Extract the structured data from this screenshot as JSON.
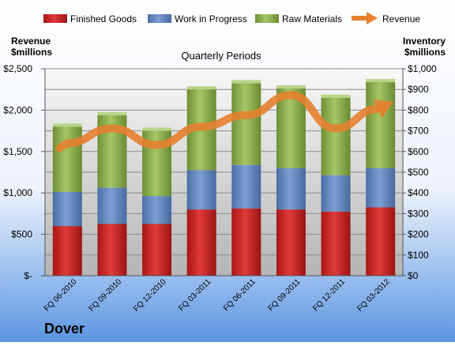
{
  "chart_data": {
    "type": "bar",
    "title": "Quarterly Periods",
    "company": "Dover",
    "left_axis_label": [
      "Revenue",
      "$millions"
    ],
    "right_axis_label": [
      "Inventory",
      "$millions"
    ],
    "categories": [
      "FQ 06-2010",
      "FQ 09-2010",
      "FQ 12-2010",
      "FQ 03-2011",
      "FQ 06-2011",
      "FQ 09-2011",
      "FQ 12-2011",
      "FQ 03-2012"
    ],
    "stacked": true,
    "series": [
      {
        "name": "Finished Goods",
        "axis": "right",
        "color": "#d32a2a",
        "values": [
          240,
          250,
          250,
          320,
          325,
          320,
          310,
          330
        ]
      },
      {
        "name": "Work in Progress",
        "axis": "right",
        "color": "#6a8cc4",
        "values": [
          165,
          175,
          135,
          190,
          210,
          200,
          175,
          190
        ]
      },
      {
        "name": "Raw Materials",
        "axis": "right",
        "color": "#94b454",
        "values": [
          315,
          350,
          315,
          390,
          395,
          385,
          375,
          415
        ]
      },
      {
        "name": "Revenue",
        "axis": "left",
        "type": "line",
        "color": "#e6812f",
        "values": [
          1600,
          1780,
          1580,
          1800,
          1940,
          2180,
          1780,
          2030
        ]
      }
    ],
    "left_ticks": [
      "$-",
      "$500",
      "$1,000",
      "$1,500",
      "$2,000",
      "$2,500"
    ],
    "right_ticks": [
      "$0",
      "$100",
      "$200",
      "$300",
      "$400",
      "$500",
      "$600",
      "$700",
      "$800",
      "$900",
      "$1,000"
    ],
    "ylim_left": [
      0,
      2500
    ],
    "ylim_right": [
      0,
      1000
    ],
    "grid": true,
    "legend_position": "top"
  }
}
